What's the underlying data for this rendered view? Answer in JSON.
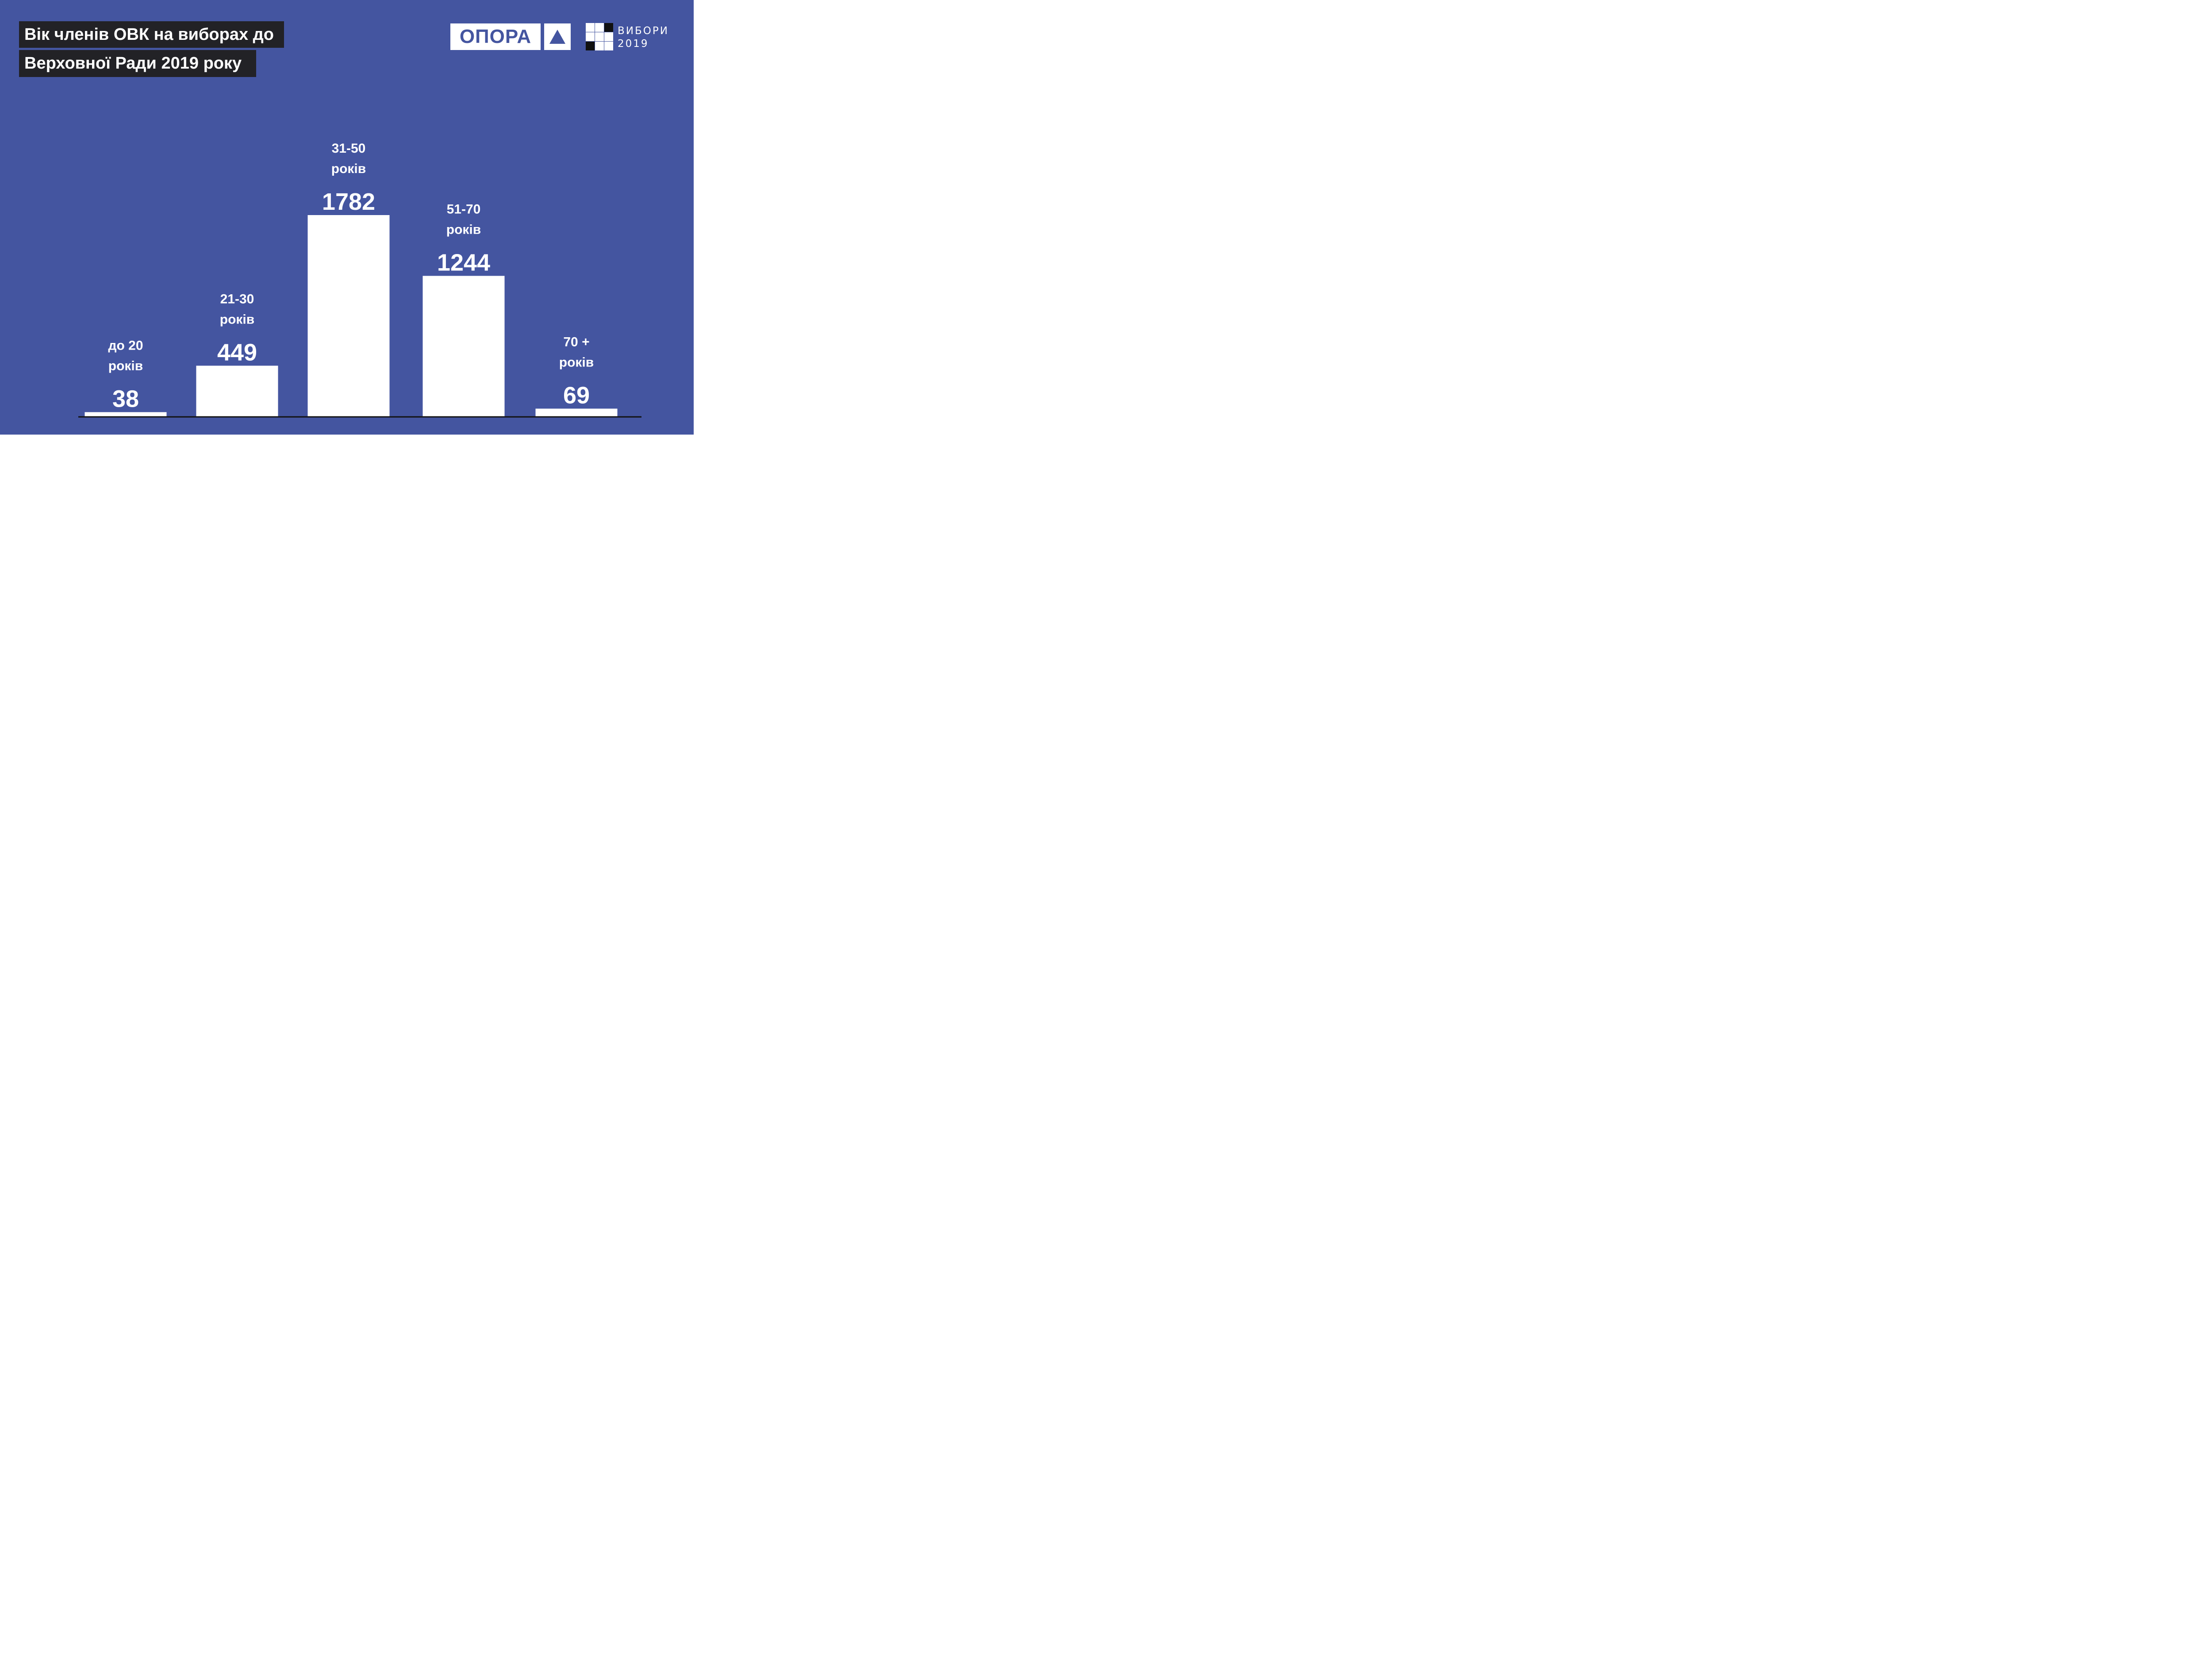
{
  "title": {
    "line1": "Вік членів ОВК на виборах до",
    "line2": "Верховної Ради 2019 року"
  },
  "logos": {
    "opora": "ОПОРА",
    "opora_mark": "triangle-icon",
    "vybory_line1": "ВИБОРИ",
    "vybory_line2": "2019"
  },
  "colors": {
    "background": "#4455a0",
    "bars": "#ffffff",
    "title_box": "#222226",
    "baseline": "#111111"
  },
  "chart_data": {
    "type": "bar",
    "title": "Вік членів ОВК на виборах до Верховної Ради 2019 року",
    "categories": [
      [
        "до 20",
        "років"
      ],
      [
        "21-30",
        "років"
      ],
      [
        "31-50",
        "років"
      ],
      [
        "51-70",
        "років"
      ],
      [
        "70 +",
        "років"
      ]
    ],
    "values": [
      38,
      449,
      1782,
      1244,
      69
    ],
    "ylim": [
      0,
      1782
    ],
    "grid": false,
    "legend": "none"
  }
}
